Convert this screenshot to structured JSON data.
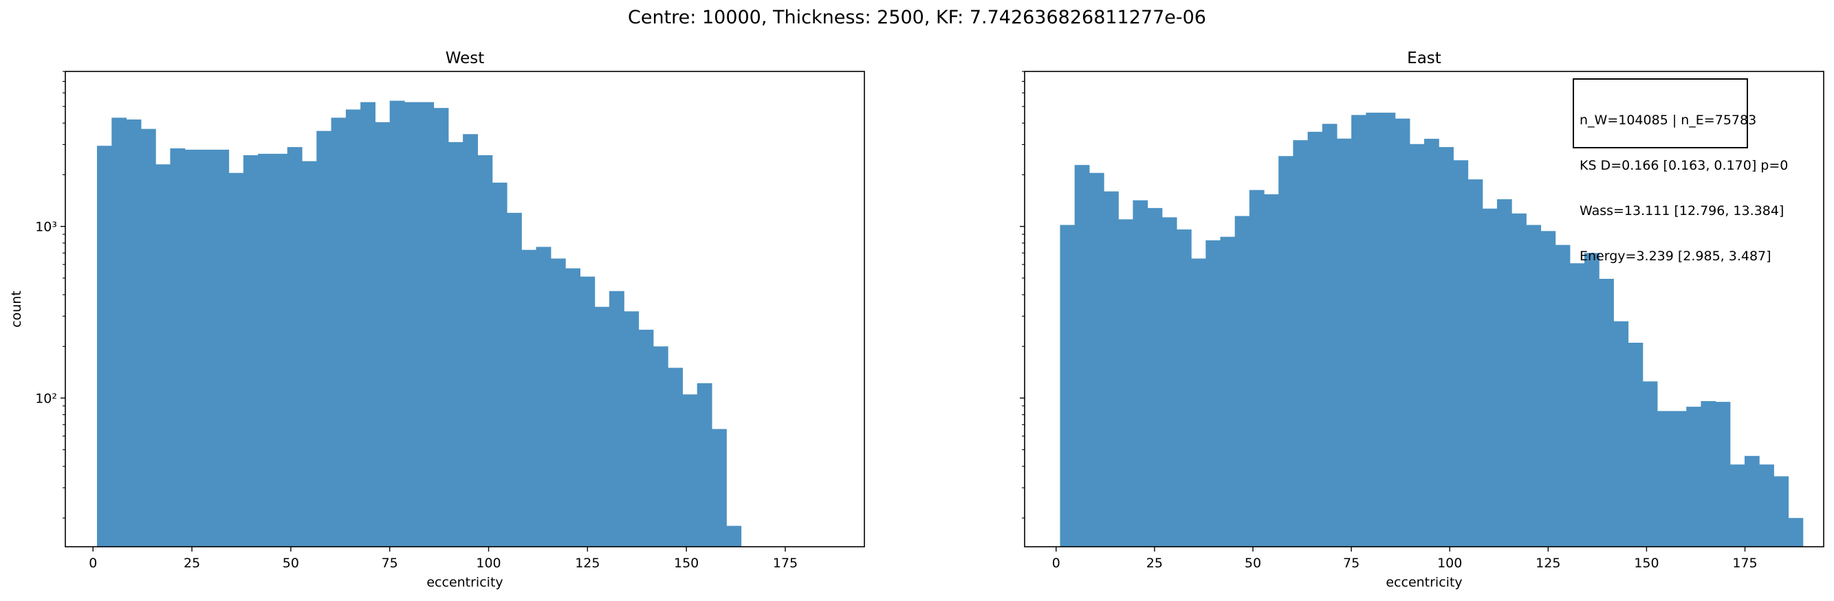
{
  "figure": {
    "suptitle": "Centre: 10000, Thickness: 2500, KF: 7.742636826811277e-06"
  },
  "stats": {
    "line1": "n_W=104085 | n_E=75783",
    "line2": "KS D=0.166 [0.163, 0.170]  p=0",
    "line3": "Wass=13.111 [12.796, 13.384]",
    "line4": "Energy=3.239 [2.985, 3.487]"
  },
  "colors": {
    "bar": "#4c91c2",
    "axis": "#000000"
  },
  "chart_data": [
    {
      "type": "bar",
      "title": "West",
      "xlabel": "eccentricity",
      "ylabel": "count",
      "yscale": "log",
      "xlim": [
        -7,
        195
      ],
      "ylim": [
        13.6,
        8000
      ],
      "xticks": [
        0,
        25,
        50,
        75,
        100,
        125,
        150,
        175
      ],
      "yticks": [
        {
          "value": 100,
          "label": "10²"
        },
        {
          "value": 1000,
          "label": "10³"
        }
      ],
      "bin_start": 1,
      "bin_width": 3.7,
      "values": [
        2950,
        4300,
        4200,
        3700,
        2300,
        2850,
        2800,
        2800,
        2800,
        2050,
        2600,
        2650,
        2650,
        2900,
        2400,
        3600,
        4300,
        4800,
        5300,
        4050,
        5400,
        5300,
        5300,
        4900,
        3100,
        3450,
        2600,
        1800,
        1200,
        730,
        760,
        650,
        570,
        510,
        340,
        420,
        320,
        250,
        200,
        150,
        105,
        122,
        66,
        18
      ]
    },
    {
      "type": "bar",
      "title": "East",
      "xlabel": "eccentricity",
      "ylabel": "",
      "yscale": "log",
      "xlim": [
        -8,
        195
      ],
      "ylim": [
        13.6,
        8000
      ],
      "xticks": [
        0,
        25,
        50,
        75,
        100,
        125,
        150,
        175
      ],
      "yticks": [
        {
          "value": 100,
          "label": ""
        },
        {
          "value": 1000,
          "label": ""
        }
      ],
      "bin_start": 1,
      "bin_width": 3.7,
      "values": [
        1020,
        2280,
        2050,
        1600,
        1100,
        1420,
        1280,
        1130,
        960,
        650,
        830,
        870,
        1150,
        1630,
        1540,
        2570,
        3180,
        3560,
        3960,
        3250,
        4460,
        4600,
        4600,
        4250,
        3020,
        3240,
        2900,
        2430,
        1880,
        1270,
        1440,
        1190,
        1020,
        940,
        780,
        610,
        700,
        495,
        280,
        210,
        125,
        84,
        84,
        89,
        96,
        95,
        41,
        46,
        41,
        35,
        20
      ]
    }
  ]
}
